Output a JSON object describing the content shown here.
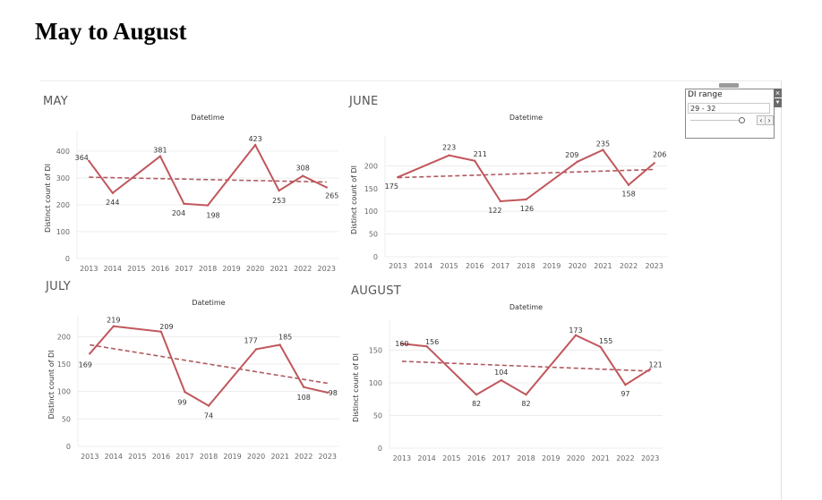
{
  "page": {
    "title": "May to August"
  },
  "filter": {
    "label": "DI range",
    "value": "29 - 32",
    "close_glyph": "×",
    "menu_glyph": "▼",
    "prev_glyph": "‹",
    "next_glyph": "›"
  },
  "colors": {
    "line": "#c0575c",
    "trend": "#b05a60",
    "grid": "#ececec",
    "label": "#333333",
    "axis_text": "#666666"
  },
  "chart_data": [
    {
      "type": "line",
      "title": "MAY",
      "subtitle": "Datetime",
      "ylabel": "Distinct count of DI",
      "categories": [
        "2013",
        "2014",
        "2015",
        "2016",
        "2017",
        "2018",
        "2019",
        "2020",
        "2021",
        "2022",
        "2023"
      ],
      "ylim": [
        0,
        450
      ],
      "yticks": [
        0,
        100,
        200,
        300,
        400
      ],
      "series": [
        {
          "x": [
            "2013",
            "2014",
            "2016",
            "2017",
            "2018",
            "2020",
            "2021",
            "2022",
            "2023"
          ],
          "values": [
            364,
            244,
            381,
            204,
            198,
            423,
            253,
            308,
            265
          ]
        }
      ],
      "trend": [
        303,
        285
      ],
      "grid": true
    },
    {
      "type": "line",
      "title": "JUNE",
      "subtitle": "Datetime",
      "ylabel": "Distinct count of DI",
      "categories": [
        "2013",
        "2014",
        "2015",
        "2016",
        "2017",
        "2018",
        "2019",
        "2020",
        "2021",
        "2022",
        "2023"
      ],
      "ylim": [
        0,
        250
      ],
      "yticks": [
        0,
        50,
        100,
        150,
        200
      ],
      "series": [
        {
          "x": [
            "2013",
            "2015",
            "2016",
            "2017",
            "2018",
            "2020",
            "2021",
            "2022",
            "2023"
          ],
          "values": [
            175,
            223,
            211,
            122,
            126,
            209,
            235,
            158,
            206
          ]
        }
      ],
      "trend": [
        174,
        192
      ],
      "grid": true
    },
    {
      "type": "line",
      "title": "JULY",
      "subtitle": "Datetime",
      "ylabel": "Distinct count of DI",
      "categories": [
        "2013",
        "2014",
        "2015",
        "2016",
        "2017",
        "2018",
        "2019",
        "2020",
        "2021",
        "2022",
        "2023"
      ],
      "ylim": [
        0,
        225
      ],
      "yticks": [
        0,
        50,
        100,
        150,
        200
      ],
      "series": [
        {
          "x": [
            "2013",
            "2014",
            "2016",
            "2017",
            "2018",
            "2020",
            "2021",
            "2022",
            "2023"
          ],
          "values": [
            169,
            219,
            209,
            99,
            74,
            177,
            185,
            108,
            98
          ]
        }
      ],
      "trend": [
        185,
        115
      ],
      "grid": true
    },
    {
      "type": "line",
      "title": "AUGUST",
      "subtitle": "Datetime",
      "ylabel": "Distinct count of DI",
      "categories": [
        "2013",
        "2014",
        "2015",
        "2016",
        "2017",
        "2018",
        "2019",
        "2020",
        "2021",
        "2022",
        "2023"
      ],
      "ylim": [
        0,
        185
      ],
      "yticks": [
        0,
        50,
        100,
        150
      ],
      "series": [
        {
          "x": [
            "2013",
            "2014",
            "2016",
            "2017",
            "2018",
            "2020",
            "2021",
            "2022",
            "2023"
          ],
          "values": [
            160,
            156,
            82,
            104,
            82,
            173,
            155,
            97,
            121
          ]
        }
      ],
      "trend": [
        133,
        118
      ],
      "grid": true
    }
  ]
}
